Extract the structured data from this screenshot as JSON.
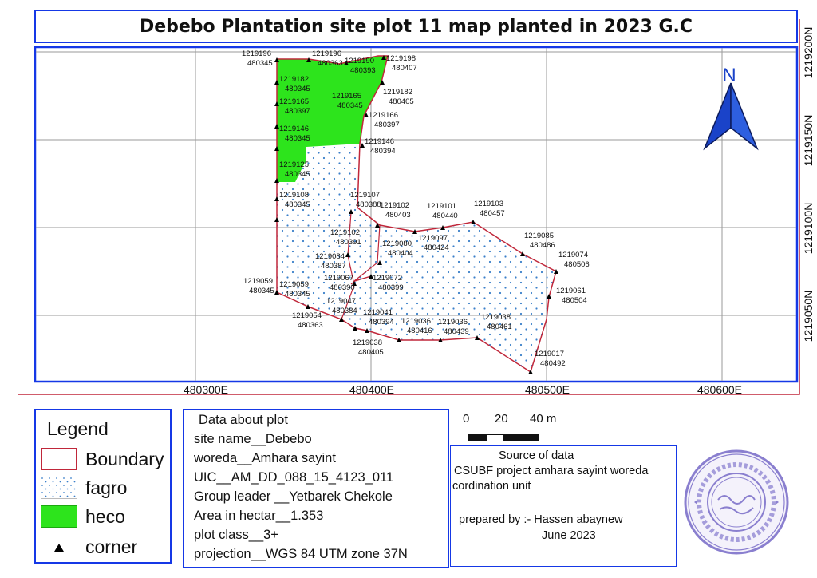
{
  "title": "Debebo Plantation site plot 11 map planted in 2023 G.C",
  "north_arrow": {
    "label": "N",
    "icon": "north-arrow-icon",
    "color": "#1a43c9"
  },
  "colors": {
    "frame": "#1538e6",
    "boundary": "#c0273a",
    "heco": "#2de41c",
    "fagro_dot": "#3a7fc9"
  },
  "grid": {
    "x_labels": [
      "480300E",
      "480400E",
      "480500E",
      "480600E"
    ],
    "y_labels": [
      "1219200N",
      "1219150N",
      "1219100N",
      "1219050N"
    ]
  },
  "points": [
    {
      "northing": "1219196",
      "easting": "480345"
    },
    {
      "northing": "1219196",
      "easting": "480363"
    },
    {
      "northing": "1219190",
      "easting": "480393"
    },
    {
      "northing": "1219198",
      "easting": "480407"
    },
    {
      "northing": "1219182",
      "easting": "480345"
    },
    {
      "northing": "1219182",
      "easting": "480405"
    },
    {
      "northing": "1219165",
      "easting": "480397"
    },
    {
      "northing": "1219165",
      "easting": "480345"
    },
    {
      "northing": "1219166",
      "easting": "480397"
    },
    {
      "northing": "1219146",
      "easting": "480345"
    },
    {
      "northing": "1219146",
      "easting": "480394"
    },
    {
      "northing": "1219125",
      "easting": "480345"
    },
    {
      "northing": "1219108",
      "easting": "480345"
    },
    {
      "northing": "1219107",
      "easting": "480388"
    },
    {
      "northing": "1219102",
      "easting": "480403"
    },
    {
      "northing": "1219101",
      "easting": "480440"
    },
    {
      "northing": "1219103",
      "easting": "480457"
    },
    {
      "northing": "1219102",
      "easting": "480391"
    },
    {
      "northing": "1219080",
      "easting": "480404"
    },
    {
      "northing": "1219097",
      "easting": "480424"
    },
    {
      "northing": "1219085",
      "easting": "480486"
    },
    {
      "northing": "1219074",
      "easting": "480506"
    },
    {
      "northing": "1219084",
      "easting": "480387"
    },
    {
      "northing": "1219067",
      "easting": "480390"
    },
    {
      "northing": "1219072",
      "easting": "480399"
    },
    {
      "northing": "1219059",
      "easting": "480345"
    },
    {
      "northing": "1219059",
      "easting": "480345"
    },
    {
      "northing": "1219061",
      "easting": "480504"
    },
    {
      "northing": "1219047",
      "easting": "480384"
    },
    {
      "northing": "1219041",
      "easting": "480394"
    },
    {
      "northing": "1219054",
      "easting": "480363"
    },
    {
      "northing": "1219036",
      "easting": "480416"
    },
    {
      "northing": "1219036",
      "easting": "480439"
    },
    {
      "northing": "1219038",
      "easting": "480461"
    },
    {
      "northing": "1219038",
      "easting": "480405"
    },
    {
      "northing": "1219017",
      "easting": "480492"
    }
  ],
  "legend": {
    "title": "Legend",
    "items": [
      {
        "label": "Boundary"
      },
      {
        "label": "fagro"
      },
      {
        "label": "heco"
      },
      {
        "label": "corner"
      }
    ]
  },
  "plot_info": {
    "heading": "Data about plot",
    "lines": [
      "site name__Debebo",
      "woreda__Amhara sayint",
      "UIC__AM_DD_088_15_4123_011",
      "Group leader __Yetbarek Chekole",
      "Area in hectar__1.353",
      "plot class__3+",
      "projection__WGS 84 UTM zone 37N"
    ]
  },
  "scale": {
    "labels": [
      "0",
      "20",
      "40 m"
    ]
  },
  "source": {
    "heading": "Source of data",
    "line1": "CSUBF project amhara sayint woreda",
    "line2": "cordination unit",
    "prepared": "prepared by :- Hassen abaynew",
    "date": "June 2023"
  },
  "stamp": {
    "icon": "official-seal-icon",
    "color": "#8a7fcf"
  }
}
